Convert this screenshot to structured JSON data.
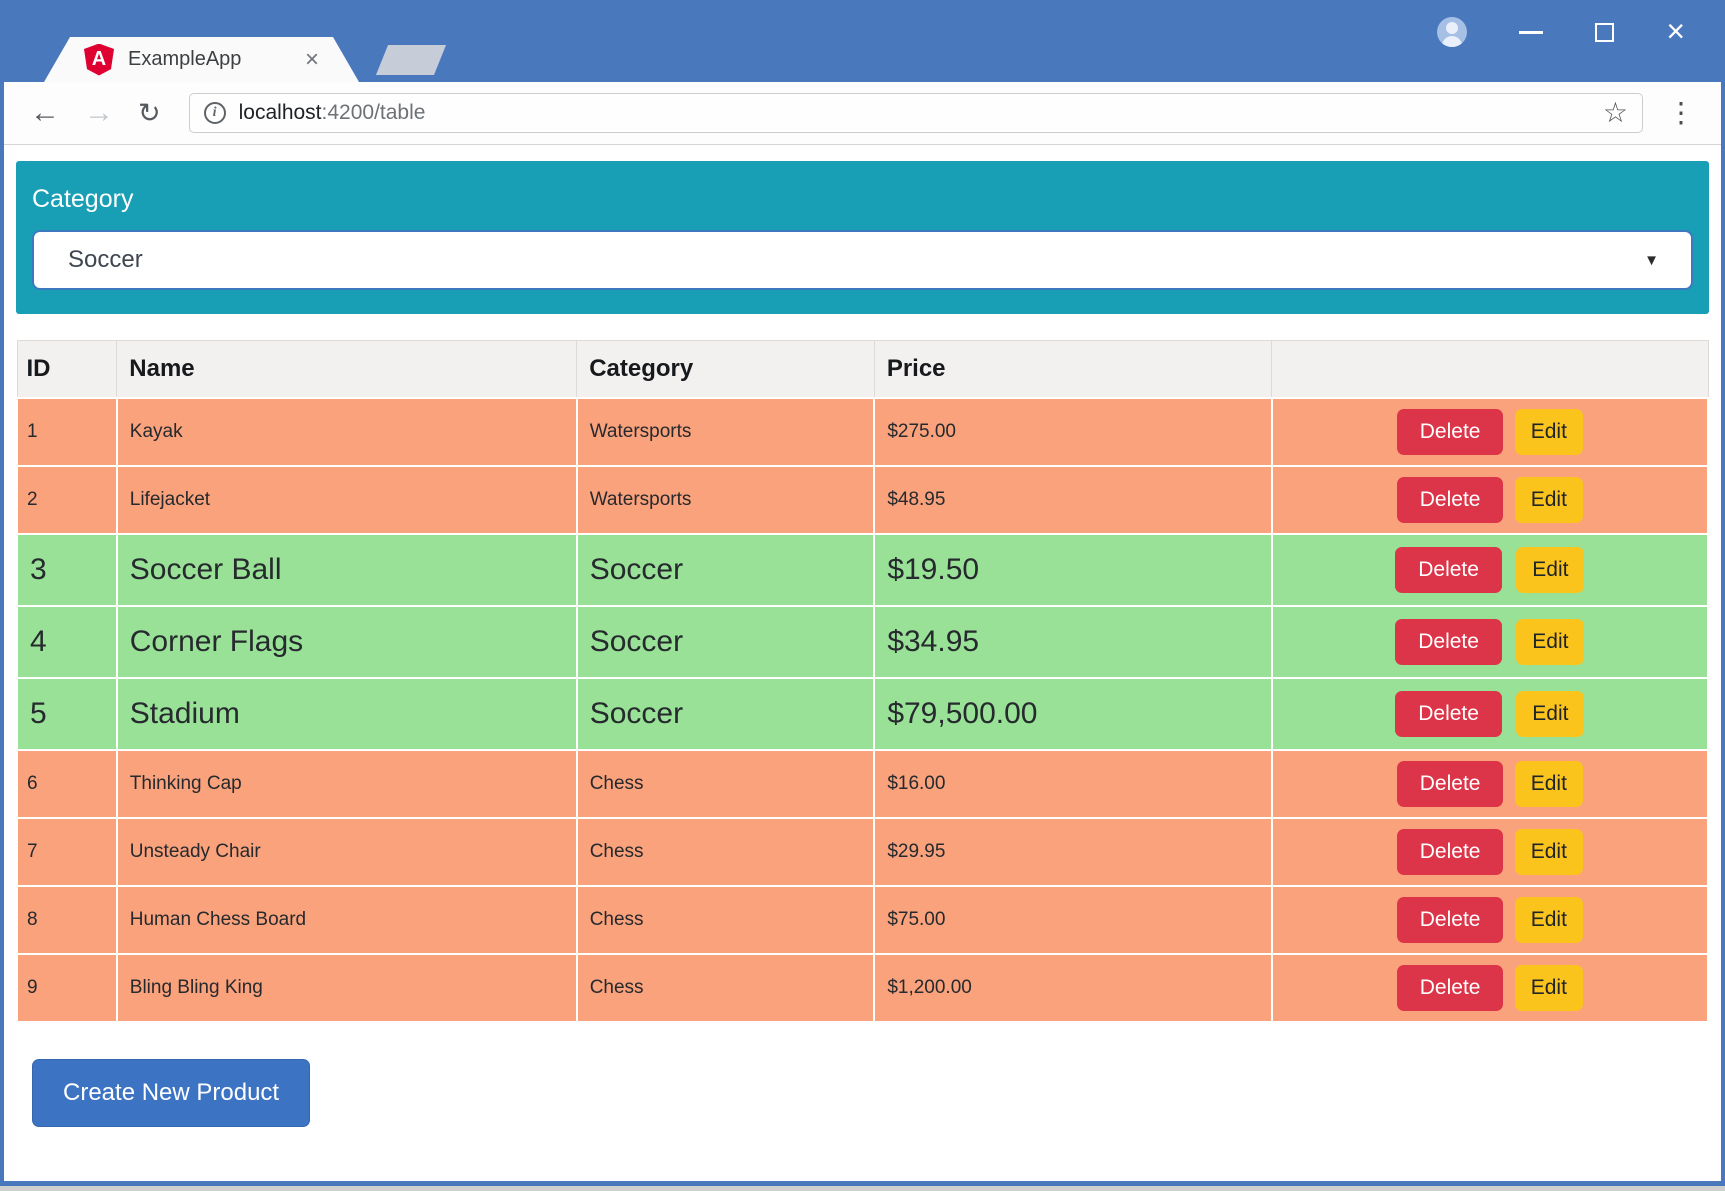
{
  "browser": {
    "titlebar": {
      "tab_title": "ExampleApp",
      "logo_letter": "A"
    },
    "address_bar": {
      "host": "localhost",
      "path": ":4200/table"
    },
    "icons": {
      "tab_close": "×",
      "window_close": "×",
      "back": "←",
      "forward": "→",
      "reload": "↻",
      "info": "i",
      "bookmark_star": "☆",
      "menu_dots": "⋮",
      "dropdown_arrow": "▼"
    }
  },
  "page": {
    "category_filter": {
      "label": "Category",
      "selected": "Soccer"
    },
    "table": {
      "headers": [
        "ID",
        "Name",
        "Category",
        "Price",
        ""
      ],
      "action_labels": {
        "delete": "Delete",
        "edit": "Edit"
      },
      "rows": [
        {
          "id": "1",
          "name": "Kayak",
          "category": "Watersports",
          "price": "$275.00",
          "highlight": false
        },
        {
          "id": "2",
          "name": "Lifejacket",
          "category": "Watersports",
          "price": "$48.95",
          "highlight": false
        },
        {
          "id": "3",
          "name": "Soccer Ball",
          "category": "Soccer",
          "price": "$19.50",
          "highlight": true
        },
        {
          "id": "4",
          "name": "Corner Flags",
          "category": "Soccer",
          "price": "$34.95",
          "highlight": true
        },
        {
          "id": "5",
          "name": "Stadium",
          "category": "Soccer",
          "price": "$79,500.00",
          "highlight": true
        },
        {
          "id": "6",
          "name": "Thinking Cap",
          "category": "Chess",
          "price": "$16.00",
          "highlight": false
        },
        {
          "id": "7",
          "name": "Unsteady Chair",
          "category": "Chess",
          "price": "$29.95",
          "highlight": false
        },
        {
          "id": "8",
          "name": "Human Chess Board",
          "category": "Chess",
          "price": "$75.00",
          "highlight": false
        },
        {
          "id": "9",
          "name": "Bling Bling King",
          "category": "Chess",
          "price": "$1,200.00",
          "highlight": false
        }
      ]
    },
    "create_button_label": "Create New Product"
  },
  "colors": {
    "titlebar_blue": "#4A78BD",
    "panel_teal": "#189EB5",
    "row_default_salmon": "#F9A27C",
    "row_highlight_green": "#98E197",
    "delete_red": "#DC3448",
    "edit_yellow": "#FBC41D",
    "primary_blue": "#3C73C3",
    "table_header_gray": "#F2F1EF"
  }
}
